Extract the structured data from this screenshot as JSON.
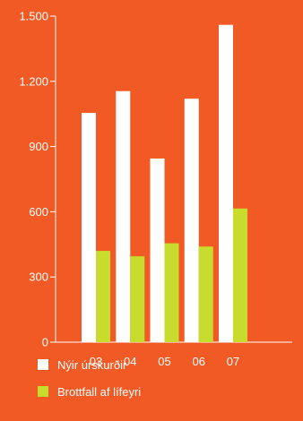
{
  "chart_data": {
    "type": "bar",
    "title": "",
    "xlabel": "",
    "ylabel": "",
    "categories": [
      "03",
      "04",
      "05",
      "06",
      "07"
    ],
    "series": [
      {
        "name": "Nýir úrskurðir",
        "values": [
          1055,
          1155,
          845,
          1120,
          1460
        ],
        "color": "#ffffff"
      },
      {
        "name": "Brottfall af lífeyri",
        "values": [
          420,
          395,
          455,
          440,
          615
        ],
        "color": "#c8dc2d"
      }
    ],
    "ylim": [
      0,
      1500
    ],
    "yticks": [
      0,
      300,
      600,
      900,
      1200,
      1500
    ],
    "ytick_labels": [
      "0",
      "300",
      "600",
      "900",
      "1.200",
      "1.500"
    ],
    "grid": false,
    "legend_position": "bottom-left",
    "background_color": "#f15a24",
    "axis_color": "#ffffff"
  }
}
